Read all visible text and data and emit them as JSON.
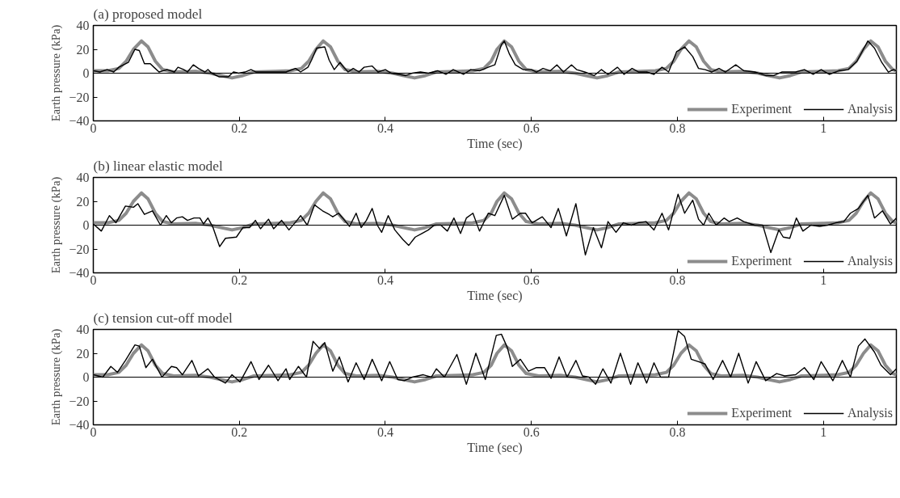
{
  "chart_data": [
    {
      "type": "line",
      "title": "(a) proposed model",
      "xlabel": "Time (sec)",
      "ylabel": "Earth pressure (kPa)",
      "xlim": [
        0,
        1.1
      ],
      "ylim": [
        -40,
        40
      ],
      "xticks": [
        0,
        0.2,
        0.4,
        0.6,
        0.8,
        1
      ],
      "yticks": [
        -40,
        -20,
        0,
        20,
        40
      ],
      "legend": "bottom right",
      "ref_lines": [
        {
          "axis": "y",
          "value": 0
        }
      ],
      "series": [
        {
          "name": "Experiment",
          "color": "#8c8c8c",
          "x": [
            0,
            0.02,
            0.035,
            0.045,
            0.055,
            0.066,
            0.075,
            0.085,
            0.095,
            0.11,
            0.14,
            0.16,
            0.175,
            0.19,
            0.205,
            0.22,
            0.25,
            0.27,
            0.285,
            0.295,
            0.305,
            0.315,
            0.325,
            0.335,
            0.345,
            0.36,
            0.39,
            0.41,
            0.425,
            0.44,
            0.455,
            0.47,
            0.5,
            0.52,
            0.535,
            0.545,
            0.553,
            0.563,
            0.573,
            0.583,
            0.593,
            0.61,
            0.64,
            0.66,
            0.675,
            0.69,
            0.705,
            0.72,
            0.75,
            0.77,
            0.785,
            0.795,
            0.805,
            0.816,
            0.826,
            0.836,
            0.846,
            0.86,
            0.89,
            0.91,
            0.925,
            0.94,
            0.955,
            0.97,
            1.0,
            1.02,
            1.035,
            1.045,
            1.055,
            1.065,
            1.075,
            1.085,
            1.095,
            1.1
          ],
          "values": [
            2,
            2,
            4,
            10,
            20,
            27,
            22,
            10,
            3,
            1,
            1.5,
            0,
            -2,
            -4,
            -2,
            1,
            1.5,
            2,
            4,
            10,
            20,
            27,
            22,
            10,
            3,
            1,
            1.5,
            0,
            -2,
            -4,
            -2,
            1,
            1.5,
            2,
            4,
            10,
            20,
            27,
            22,
            10,
            3,
            1,
            1.5,
            0,
            -2,
            -4,
            -2,
            1,
            1.5,
            2,
            4,
            10,
            20,
            27,
            22,
            10,
            3,
            1,
            1.5,
            0,
            -2,
            -4,
            -2,
            1,
            1.5,
            2,
            4,
            10,
            20,
            27,
            22,
            10,
            3,
            2
          ]
        },
        {
          "name": "Analysis",
          "color": "#000000",
          "x": [
            0,
            0.009,
            0.019,
            0.028,
            0.035,
            0.048,
            0.057,
            0.063,
            0.07,
            0.078,
            0.083,
            0.09,
            0.101,
            0.111,
            0.116,
            0.124,
            0.129,
            0.137,
            0.144,
            0.153,
            0.157,
            0.162,
            0.172,
            0.185,
            0.192,
            0.199,
            0.208,
            0.216,
            0.223,
            0.231,
            0.242,
            0.249,
            0.257,
            0.264,
            0.277,
            0.284,
            0.294,
            0.299,
            0.306,
            0.317,
            0.323,
            0.33,
            0.338,
            0.343,
            0.349,
            0.356,
            0.364,
            0.371,
            0.382,
            0.39,
            0.4,
            0.408,
            0.419,
            0.428,
            0.437,
            0.448,
            0.459,
            0.472,
            0.483,
            0.493,
            0.507,
            0.517,
            0.529,
            0.541,
            0.55,
            0.559,
            0.563,
            0.57,
            0.578,
            0.589,
            0.6,
            0.607,
            0.616,
            0.626,
            0.635,
            0.644,
            0.655,
            0.662,
            0.673,
            0.686,
            0.696,
            0.705,
            0.718,
            0.727,
            0.738,
            0.747,
            0.758,
            0.768,
            0.779,
            0.788,
            0.799,
            0.81,
            0.821,
            0.829,
            0.838,
            0.847,
            0.857,
            0.866,
            0.88,
            0.891,
            0.906,
            0.921,
            0.932,
            0.943,
            0.962,
            0.974,
            0.986,
            0.997,
            1.008,
            1.021,
            1.034,
            1.046,
            1.061,
            1.07,
            1.08,
            1.089,
            1.096,
            1.1
          ],
          "values": [
            2,
            1,
            3,
            1,
            5,
            9,
            20,
            19,
            8,
            8,
            5,
            1,
            3,
            1,
            5,
            3,
            1,
            7,
            4,
            1,
            3,
            0,
            -3,
            -3,
            1,
            0,
            1,
            3,
            1,
            1,
            1,
            1,
            1,
            1,
            4,
            1,
            5,
            11,
            21,
            22,
            11,
            3,
            9,
            5,
            1,
            4,
            1,
            5,
            6,
            1,
            3,
            0,
            -1,
            -2,
            0,
            1,
            0,
            2,
            -1,
            3,
            -1,
            3,
            2,
            5,
            7,
            24,
            27,
            16,
            7,
            3,
            3,
            1,
            4,
            2,
            7,
            1,
            7,
            3,
            1,
            -2,
            3,
            -1,
            5,
            -1,
            4,
            1,
            1,
            -1,
            5,
            1,
            18,
            22,
            14,
            4,
            3,
            1,
            4,
            1,
            7,
            2,
            1,
            -2,
            -2,
            1,
            1,
            3,
            -1,
            3,
            -1,
            2,
            3,
            10,
            27,
            21,
            9,
            1,
            3,
            2
          ]
        }
      ]
    },
    {
      "type": "line",
      "title": "(b) linear elastic model",
      "xlabel": "Time (sec)",
      "ylabel": "Earth pressure (kPa)",
      "xlim": [
        0,
        1.1
      ],
      "ylim": [
        -40,
        40
      ],
      "xticks": [
        0,
        0.2,
        0.4,
        0.6,
        0.8,
        1
      ],
      "yticks": [
        -40,
        -20,
        0,
        20,
        40
      ],
      "legend": "bottom right",
      "ref_lines": [
        {
          "axis": "y",
          "value": 0
        }
      ],
      "series": [
        {
          "name": "Experiment",
          "color": "#8c8c8c",
          "x": [
            0,
            0.02,
            0.035,
            0.045,
            0.055,
            0.066,
            0.075,
            0.085,
            0.095,
            0.11,
            0.14,
            0.16,
            0.175,
            0.19,
            0.205,
            0.22,
            0.25,
            0.27,
            0.285,
            0.295,
            0.305,
            0.315,
            0.325,
            0.335,
            0.345,
            0.36,
            0.39,
            0.41,
            0.425,
            0.44,
            0.455,
            0.47,
            0.5,
            0.52,
            0.535,
            0.545,
            0.553,
            0.563,
            0.573,
            0.583,
            0.593,
            0.61,
            0.64,
            0.66,
            0.675,
            0.69,
            0.705,
            0.72,
            0.75,
            0.77,
            0.785,
            0.795,
            0.805,
            0.816,
            0.826,
            0.836,
            0.846,
            0.86,
            0.89,
            0.91,
            0.925,
            0.94,
            0.955,
            0.97,
            1.0,
            1.02,
            1.035,
            1.045,
            1.055,
            1.065,
            1.075,
            1.085,
            1.095,
            1.1
          ],
          "values": [
            2,
            2,
            4,
            10,
            20,
            27,
            22,
            10,
            3,
            1,
            1.5,
            0,
            -2,
            -4,
            -2,
            1,
            1.5,
            2,
            4,
            10,
            20,
            27,
            22,
            10,
            3,
            1,
            1.5,
            0,
            -2,
            -4,
            -2,
            1,
            1.5,
            2,
            4,
            10,
            20,
            27,
            22,
            10,
            3,
            1,
            1.5,
            0,
            -2,
            -4,
            -2,
            1,
            1.5,
            2,
            4,
            10,
            20,
            27,
            22,
            10,
            3,
            1,
            1.5,
            0,
            -2,
            -4,
            -2,
            1,
            1.5,
            2,
            4,
            10,
            20,
            27,
            22,
            10,
            3,
            2
          ]
        },
        {
          "name": "Analysis",
          "color": "#000000",
          "x": [
            0,
            0.011,
            0.022,
            0.031,
            0.044,
            0.055,
            0.061,
            0.07,
            0.081,
            0.092,
            0.1,
            0.107,
            0.114,
            0.122,
            0.129,
            0.138,
            0.146,
            0.151,
            0.157,
            0.164,
            0.173,
            0.181,
            0.196,
            0.205,
            0.214,
            0.222,
            0.229,
            0.24,
            0.247,
            0.258,
            0.268,
            0.279,
            0.284,
            0.293,
            0.303,
            0.314,
            0.323,
            0.328,
            0.336,
            0.343,
            0.351,
            0.36,
            0.367,
            0.374,
            0.382,
            0.389,
            0.395,
            0.404,
            0.413,
            0.424,
            0.432,
            0.441,
            0.45,
            0.459,
            0.467,
            0.476,
            0.485,
            0.494,
            0.503,
            0.511,
            0.52,
            0.529,
            0.541,
            0.55,
            0.563,
            0.574,
            0.585,
            0.592,
            0.601,
            0.615,
            0.627,
            0.637,
            0.648,
            0.661,
            0.674,
            0.685,
            0.696,
            0.705,
            0.716,
            0.726,
            0.737,
            0.746,
            0.757,
            0.768,
            0.779,
            0.788,
            0.801,
            0.81,
            0.821,
            0.829,
            0.836,
            0.843,
            0.853,
            0.864,
            0.871,
            0.882,
            0.891,
            0.906,
            0.917,
            0.928,
            0.939,
            0.945,
            0.954,
            0.963,
            0.972,
            0.983,
            0.995,
            1.006,
            1.017,
            1.028,
            1.037,
            1.048,
            1.061,
            1.07,
            1.081,
            1.092,
            1.1
          ],
          "values": [
            1,
            -5,
            8,
            2,
            16,
            15,
            18,
            9,
            12,
            0,
            8,
            2,
            6,
            7,
            4,
            6,
            6,
            1,
            6,
            -2,
            -18,
            -11,
            -10,
            -2,
            -2,
            4,
            -3,
            5,
            -3,
            4,
            -4,
            4,
            8,
            0,
            17,
            12,
            9,
            7,
            10,
            5,
            -1,
            10,
            -2,
            4,
            14,
            0,
            -6,
            8,
            -4,
            -12,
            -17,
            -10,
            -7,
            -4,
            0,
            0,
            -5,
            6,
            -7,
            6,
            10,
            -5,
            10,
            8,
            25,
            5,
            10,
            10,
            2,
            7,
            -2,
            14,
            -9,
            18,
            -25,
            -2,
            -19,
            3,
            -6,
            2,
            0,
            2,
            3,
            -4,
            10,
            -4,
            26,
            10,
            21,
            5,
            0,
            10,
            0,
            6,
            3,
            6,
            3,
            0,
            0,
            -23,
            -4,
            -10,
            -11,
            6,
            -5,
            0,
            -1,
            0,
            2,
            3,
            10,
            14,
            25,
            6,
            12,
            1,
            6
          ]
        }
      ]
    },
    {
      "type": "line",
      "title": "(c) tension cut-off model",
      "xlabel": "Time (sec)",
      "ylabel": "Earth pressure (kPa)",
      "xlim": [
        0,
        1.1
      ],
      "ylim": [
        -40,
        40
      ],
      "xticks": [
        0,
        0.2,
        0.4,
        0.6,
        0.8,
        1
      ],
      "yticks": [
        -40,
        -20,
        0,
        20,
        40
      ],
      "legend": "bottom right",
      "ref_lines": [
        {
          "axis": "y",
          "value": 0
        }
      ],
      "series": [
        {
          "name": "Experiment",
          "color": "#8c8c8c",
          "x": [
            0,
            0.02,
            0.035,
            0.045,
            0.055,
            0.066,
            0.075,
            0.085,
            0.095,
            0.11,
            0.14,
            0.16,
            0.175,
            0.19,
            0.205,
            0.22,
            0.25,
            0.27,
            0.285,
            0.295,
            0.305,
            0.315,
            0.325,
            0.335,
            0.345,
            0.36,
            0.39,
            0.41,
            0.425,
            0.44,
            0.455,
            0.47,
            0.5,
            0.52,
            0.535,
            0.545,
            0.553,
            0.563,
            0.573,
            0.583,
            0.593,
            0.61,
            0.64,
            0.66,
            0.675,
            0.69,
            0.705,
            0.72,
            0.75,
            0.77,
            0.785,
            0.795,
            0.805,
            0.816,
            0.826,
            0.836,
            0.846,
            0.86,
            0.89,
            0.91,
            0.925,
            0.94,
            0.955,
            0.97,
            1.0,
            1.02,
            1.035,
            1.045,
            1.055,
            1.065,
            1.075,
            1.085,
            1.095,
            1.1
          ],
          "values": [
            2,
            2,
            4,
            10,
            20,
            27,
            22,
            10,
            3,
            1,
            1.5,
            0,
            -2,
            -4,
            -2,
            1,
            1.5,
            2,
            4,
            10,
            20,
            27,
            22,
            10,
            3,
            1,
            1.5,
            0,
            -2,
            -4,
            -2,
            1,
            1.5,
            2,
            4,
            10,
            20,
            27,
            22,
            10,
            3,
            1,
            1.5,
            0,
            -2,
            -4,
            -2,
            1,
            1.5,
            2,
            4,
            10,
            20,
            27,
            22,
            10,
            3,
            1,
            1.5,
            0,
            -2,
            -4,
            -2,
            1,
            1.5,
            2,
            4,
            10,
            20,
            27,
            22,
            10,
            3,
            2
          ]
        },
        {
          "name": "Analysis",
          "color": "#000000",
          "x": [
            0,
            0.013,
            0.024,
            0.033,
            0.044,
            0.057,
            0.063,
            0.072,
            0.081,
            0.094,
            0.107,
            0.114,
            0.122,
            0.135,
            0.144,
            0.157,
            0.166,
            0.181,
            0.19,
            0.201,
            0.216,
            0.227,
            0.24,
            0.253,
            0.264,
            0.269,
            0.281,
            0.292,
            0.301,
            0.31,
            0.317,
            0.328,
            0.337,
            0.349,
            0.36,
            0.371,
            0.382,
            0.395,
            0.406,
            0.417,
            0.426,
            0.437,
            0.452,
            0.463,
            0.47,
            0.481,
            0.498,
            0.511,
            0.524,
            0.537,
            0.552,
            0.559,
            0.567,
            0.574,
            0.585,
            0.596,
            0.607,
            0.618,
            0.627,
            0.638,
            0.649,
            0.661,
            0.67,
            0.679,
            0.688,
            0.698,
            0.709,
            0.722,
            0.736,
            0.746,
            0.758,
            0.768,
            0.777,
            0.788,
            0.801,
            0.81,
            0.819,
            0.829,
            0.838,
            0.849,
            0.862,
            0.873,
            0.884,
            0.897,
            0.908,
            0.921,
            0.936,
            0.947,
            0.962,
            0.974,
            0.987,
            0.997,
            1.013,
            1.026,
            1.037,
            1.048,
            1.057,
            1.07,
            1.079,
            1.092,
            1.1
          ],
          "values": [
            2,
            0,
            9,
            4,
            14,
            27,
            26,
            8,
            15,
            0,
            9,
            8,
            2,
            14,
            1,
            7,
            0,
            -5,
            2,
            -4,
            13,
            -2,
            10,
            -3,
            7,
            -2,
            9,
            0,
            30,
            24,
            29,
            5,
            17,
            -4,
            12,
            -2,
            15,
            -3,
            13,
            -2,
            -3,
            0,
            2,
            0,
            7,
            0,
            19,
            -6,
            20,
            -2,
            35,
            36,
            25,
            9,
            15,
            5,
            8,
            8,
            -1,
            17,
            0,
            14,
            1,
            0,
            -6,
            7,
            -5,
            20,
            -6,
            12,
            -5,
            12,
            0,
            0,
            39,
            34,
            15,
            13,
            11,
            -2,
            14,
            0,
            20,
            -5,
            13,
            -3,
            3,
            1,
            2,
            8,
            -2,
            13,
            -3,
            14,
            0,
            26,
            32,
            21,
            10,
            2,
            7
          ]
        }
      ]
    }
  ]
}
